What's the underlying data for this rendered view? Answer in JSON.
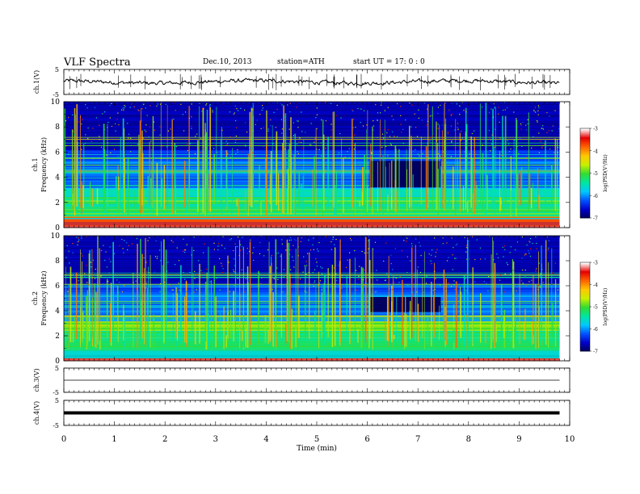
{
  "header": {
    "title": "VLF  Spectra",
    "date": "Dec.10, 2013",
    "station": "station=ATH",
    "start": "start  UT  =    17: 0  : 0"
  },
  "chart_data": [
    {
      "type": "line",
      "panel": "ch1-waveform",
      "ylabel": "ch.1(V)",
      "yticks": [
        "5",
        "-5"
      ],
      "ylim": [
        -5,
        5
      ],
      "series": [
        {
          "values_approx": "noisy trace near 0 V",
          "level": 0
        }
      ]
    },
    {
      "type": "heatmap",
      "panel": "ch1-spectrogram",
      "ylabel": "Frequency  (kHz)",
      "ylabel_channel": "ch.1",
      "ylim": [
        0,
        10
      ],
      "yticks": [
        "0",
        "2",
        "4",
        "6",
        "8",
        "10"
      ],
      "xlim": [
        0,
        10
      ],
      "data_extent_x": [
        0,
        9.8
      ],
      "colorbar": {
        "label": "log(PSD(V²/Hz)",
        "range": [
          -7,
          -3
        ],
        "ticks": [
          "-3",
          "-4",
          "-5",
          "-6",
          "-7"
        ]
      },
      "quiet_patch": {
        "t": [
          6.05,
          7.45
        ],
        "f": [
          3.2,
          5.3
        ]
      }
    },
    {
      "type": "heatmap",
      "panel": "ch2-spectrogram",
      "ylabel": "Frequency  (kHz)",
      "ylabel_channel": "ch.2",
      "ylim": [
        0,
        10
      ],
      "yticks": [
        "0",
        "2",
        "4",
        "6",
        "8",
        "10"
      ],
      "xlim": [
        0,
        10
      ],
      "data_extent_x": [
        0,
        9.8
      ],
      "colorbar": {
        "label": "log(PSD(V²/Hz)",
        "range": [
          -7,
          -3
        ],
        "ticks": [
          "-3",
          "-4",
          "-5",
          "-6",
          "-7"
        ]
      },
      "quiet_patch": {
        "t": [
          6.05,
          7.45
        ],
        "f": [
          3.9,
          5.1
        ]
      }
    },
    {
      "type": "line",
      "panel": "ch3-waveform",
      "ylabel": "ch.3(V)",
      "yticks": [
        "5",
        "-5"
      ],
      "ylim": [
        -5,
        5
      ],
      "series": [
        {
          "level": 0
        }
      ]
    },
    {
      "type": "line",
      "panel": "ch4-waveform",
      "ylabel": "ch.4(V)",
      "yticks": [
        "5",
        "-5"
      ],
      "ylim": [
        -5,
        5
      ],
      "series": [
        {
          "level": 0
        }
      ]
    }
  ],
  "x_axis": {
    "label": "Time  (min)",
    "ticks": [
      "0",
      "1",
      "2",
      "3",
      "4",
      "5",
      "6",
      "7",
      "8",
      "9",
      "10"
    ]
  },
  "colorscale": [
    "#000055",
    "#0000c8",
    "#0050ff",
    "#00c8ff",
    "#00e6a0",
    "#32dc32",
    "#c8f000",
    "#ffc800",
    "#ff6400",
    "#e60000",
    "#ffffff"
  ]
}
